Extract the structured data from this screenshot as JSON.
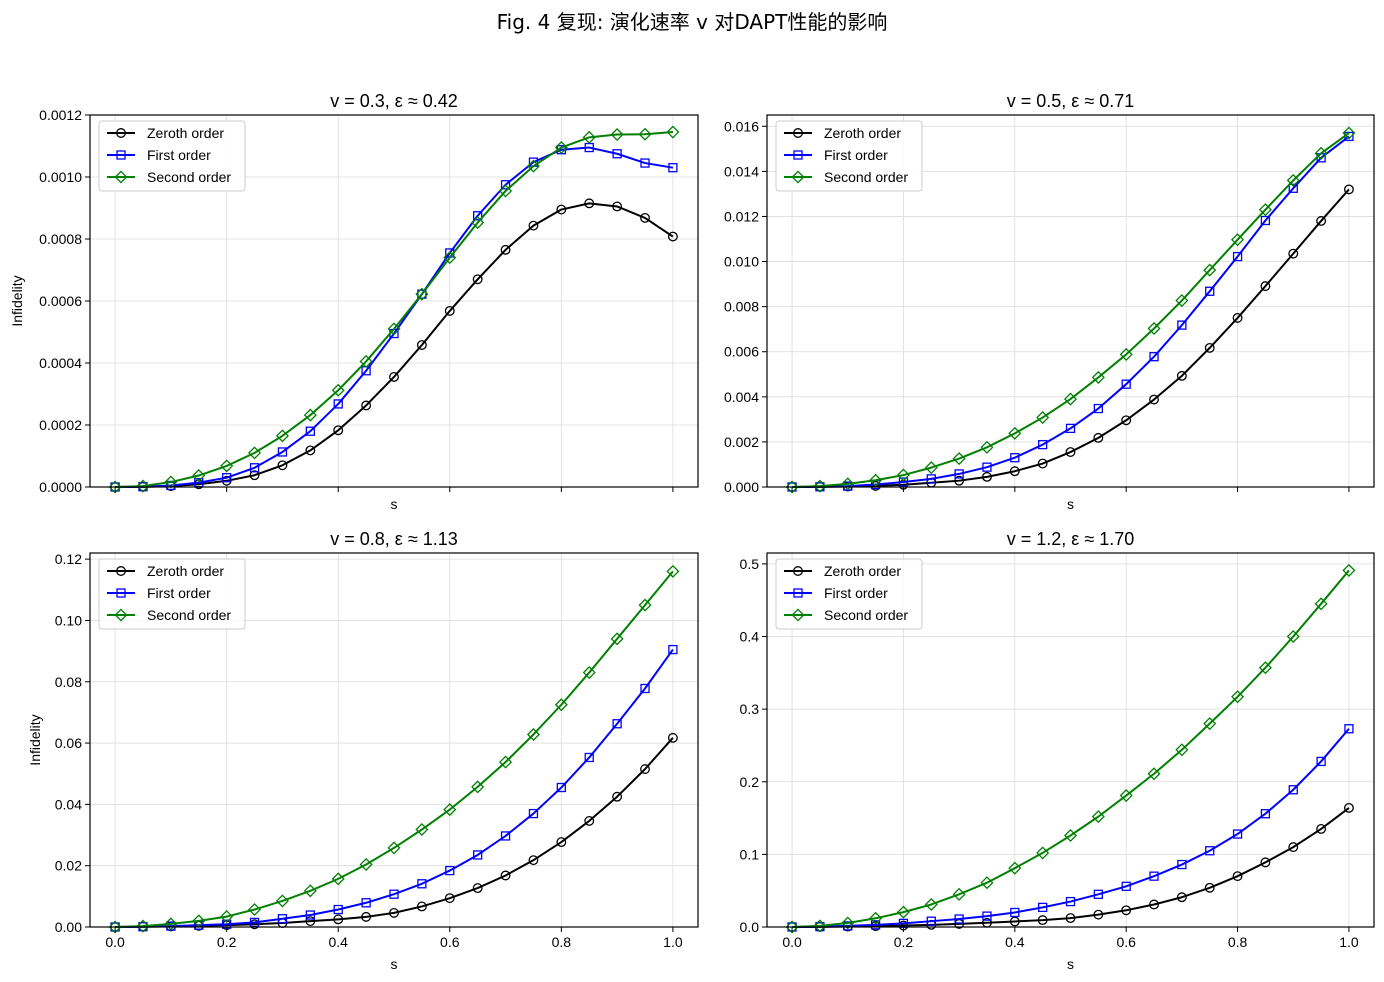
{
  "figure": {
    "title": "Fig. 4 复现: 演化速率 v 对DAPT性能的影响"
  },
  "styles": {
    "Zeroth order": {
      "color": "#000000",
      "marker": "circle"
    },
    "First order": {
      "color": "#0000ff",
      "marker": "square"
    },
    "Second order": {
      "color": "#008000",
      "marker": "diamond"
    }
  },
  "chart_data": [
    {
      "type": "line",
      "title": "v = 0.3,  ε ≈ 0.42",
      "xlabel": "s",
      "ylabel": "Infidelity",
      "xlim": [
        -0.045,
        1.045
      ],
      "ylim": [
        0,
        0.0012
      ],
      "xticks": [
        0.0,
        0.2,
        0.4,
        0.6,
        0.8,
        1.0
      ],
      "xtick_labels": [],
      "yticks": [
        0,
        0.0002,
        0.0004,
        0.0006,
        0.0008,
        0.001,
        0.0012
      ],
      "ytick_labels": [
        "0.0000",
        "0.0002",
        "0.0004",
        "0.0006",
        "0.0008",
        "0.0010",
        "0.0012"
      ],
      "grid": true,
      "legend": "upper-left",
      "x": [
        0,
        0.05,
        0.1,
        0.15,
        0.2,
        0.25,
        0.3,
        0.35,
        0.4,
        0.45,
        0.5,
        0.55,
        0.6,
        0.65,
        0.7,
        0.75,
        0.8,
        0.85,
        0.9,
        0.95,
        1.0
      ],
      "series": [
        {
          "name": "Zeroth order",
          "values": [
            0,
            5e-07,
            3e-06,
            9e-06,
            2e-05,
            3.8e-05,
            7e-05,
            0.000118,
            0.000183,
            0.000263,
            0.000355,
            0.000458,
            0.000568,
            0.00067,
            0.000765,
            0.000843,
            0.000895,
            0.000915,
            0.000905,
            0.000868,
            0.000808
          ]
        },
        {
          "name": "First order",
          "values": [
            0,
            1e-06,
            5e-06,
            1.4e-05,
            3e-05,
            6.2e-05,
            0.000113,
            0.00018,
            0.000268,
            0.000375,
            0.000495,
            0.000622,
            0.000755,
            0.000875,
            0.000975,
            0.001048,
            0.001088,
            0.001095,
            0.001075,
            0.001045,
            0.00103
          ]
        },
        {
          "name": "Second order",
          "values": [
            0,
            3e-06,
            1.6e-05,
            3.7e-05,
            6.8e-05,
            0.00011,
            0.000165,
            0.000232,
            0.000312,
            0.000405,
            0.00051,
            0.000622,
            0.00074,
            0.000853,
            0.000955,
            0.001035,
            0.001095,
            0.001128,
            0.001137,
            0.001138,
            0.001145
          ]
        }
      ]
    },
    {
      "type": "line",
      "title": "v = 0.5,  ε ≈ 0.71",
      "xlabel": "s",
      "ylabel": "",
      "xlim": [
        -0.045,
        1.045
      ],
      "ylim": [
        0,
        0.0165
      ],
      "xticks": [
        0.0,
        0.2,
        0.4,
        0.6,
        0.8,
        1.0
      ],
      "xtick_labels": [],
      "yticks": [
        0,
        0.002,
        0.004,
        0.006,
        0.008,
        0.01,
        0.012,
        0.014,
        0.016
      ],
      "ytick_labels": [
        "0.000",
        "0.002",
        "0.004",
        "0.006",
        "0.008",
        "0.010",
        "0.012",
        "0.014",
        "0.016"
      ],
      "grid": true,
      "legend": "upper-left",
      "x": [
        0,
        0.05,
        0.1,
        0.15,
        0.2,
        0.25,
        0.3,
        0.35,
        0.4,
        0.45,
        0.5,
        0.55,
        0.6,
        0.65,
        0.7,
        0.75,
        0.8,
        0.85,
        0.9,
        0.95,
        1.0
      ],
      "series": [
        {
          "name": "Zeroth order",
          "values": [
            0,
            5e-06,
            2e-05,
            5e-05,
            0.0001,
            0.00019,
            0.00028,
            0.00045,
            0.0007,
            0.00104,
            0.00155,
            0.00218,
            0.00296,
            0.00388,
            0.00493,
            0.00617,
            0.0075,
            0.00891,
            0.01035,
            0.0118,
            0.0132
          ]
        },
        {
          "name": "First order",
          "values": [
            0,
            1e-05,
            4e-05,
            0.00011,
            0.00022,
            0.00036,
            0.00058,
            0.00088,
            0.0013,
            0.00188,
            0.0026,
            0.00348,
            0.00456,
            0.00578,
            0.00718,
            0.00868,
            0.01022,
            0.01182,
            0.01325,
            0.0146,
            0.01555
          ]
        },
        {
          "name": "Second order",
          "values": [
            0,
            4e-05,
            0.00014,
            0.0003,
            0.00053,
            0.00086,
            0.00126,
            0.00176,
            0.00238,
            0.00308,
            0.0039,
            0.00486,
            0.00588,
            0.00703,
            0.00827,
            0.00962,
            0.01097,
            0.0123,
            0.0136,
            0.0148,
            0.0157
          ]
        }
      ]
    },
    {
      "type": "line",
      "title": "v = 0.8,  ε ≈ 1.13",
      "xlabel": "s",
      "ylabel": "Infidelity",
      "xlim": [
        -0.045,
        1.045
      ],
      "ylim": [
        0,
        0.122
      ],
      "xticks": [
        0.0,
        0.2,
        0.4,
        0.6,
        0.8,
        1.0
      ],
      "xtick_labels": [
        "0.0",
        "0.2",
        "0.4",
        "0.6",
        "0.8",
        "1.0"
      ],
      "yticks": [
        0,
        0.02,
        0.04,
        0.06,
        0.08,
        0.1,
        0.12
      ],
      "ytick_labels": [
        "0.00",
        "0.02",
        "0.04",
        "0.06",
        "0.08",
        "0.10",
        "0.12"
      ],
      "grid": true,
      "legend": "upper-left",
      "x": [
        0,
        0.05,
        0.1,
        0.15,
        0.2,
        0.25,
        0.3,
        0.35,
        0.4,
        0.45,
        0.5,
        0.55,
        0.6,
        0.65,
        0.7,
        0.75,
        0.8,
        0.85,
        0.9,
        0.95,
        1.0
      ],
      "series": [
        {
          "name": "Zeroth order",
          "values": [
            0,
            0.0001,
            0.0002,
            0.0004,
            0.0006,
            0.0009,
            0.0013,
            0.0019,
            0.0025,
            0.0033,
            0.0046,
            0.0067,
            0.0094,
            0.0127,
            0.0168,
            0.0218,
            0.0277,
            0.0346,
            0.0425,
            0.0515,
            0.0617
          ]
        },
        {
          "name": "First order",
          "values": [
            0,
            0.0001,
            0.0003,
            0.0006,
            0.0009,
            0.0015,
            0.0027,
            0.0039,
            0.0057,
            0.0079,
            0.0107,
            0.0141,
            0.0184,
            0.0235,
            0.0297,
            0.037,
            0.0455,
            0.0553,
            0.0663,
            0.0778,
            0.0905
          ]
        },
        {
          "name": "Second order",
          "values": [
            0,
            0.0003,
            0.001,
            0.002,
            0.0034,
            0.0057,
            0.0085,
            0.0118,
            0.0157,
            0.0204,
            0.0258,
            0.0318,
            0.0383,
            0.0457,
            0.0538,
            0.0628,
            0.0725,
            0.083,
            0.094,
            0.105,
            0.116
          ]
        }
      ]
    },
    {
      "type": "line",
      "title": "v = 1.2,  ε ≈ 1.70",
      "xlabel": "s",
      "ylabel": "",
      "xlim": [
        -0.045,
        1.045
      ],
      "ylim": [
        0,
        0.515
      ],
      "xticks": [
        0.0,
        0.2,
        0.4,
        0.6,
        0.8,
        1.0
      ],
      "xtick_labels": [
        "0.0",
        "0.2",
        "0.4",
        "0.6",
        "0.8",
        "1.0"
      ],
      "yticks": [
        0,
        0.1,
        0.2,
        0.3,
        0.4,
        0.5
      ],
      "ytick_labels": [
        "0.0",
        "0.1",
        "0.2",
        "0.3",
        "0.4",
        "0.5"
      ],
      "grid": true,
      "legend": "upper-left",
      "x": [
        0,
        0.05,
        0.1,
        0.15,
        0.2,
        0.25,
        0.3,
        0.35,
        0.4,
        0.45,
        0.5,
        0.55,
        0.6,
        0.65,
        0.7,
        0.75,
        0.8,
        0.85,
        0.9,
        0.95,
        1.0
      ],
      "series": [
        {
          "name": "Zeroth order",
          "values": [
            0,
            0.0002,
            0.0006,
            0.0012,
            0.002,
            0.003,
            0.0043,
            0.0058,
            0.0076,
            0.0095,
            0.0123,
            0.017,
            0.023,
            0.031,
            0.041,
            0.054,
            0.07,
            0.089,
            0.11,
            0.135,
            0.164
          ]
        },
        {
          "name": "First order",
          "values": [
            0,
            0.0005,
            0.0015,
            0.003,
            0.005,
            0.008,
            0.011,
            0.015,
            0.02,
            0.027,
            0.035,
            0.045,
            0.056,
            0.07,
            0.086,
            0.105,
            0.128,
            0.156,
            0.189,
            0.228,
            0.273
          ]
        },
        {
          "name": "Second order",
          "values": [
            0,
            0.0015,
            0.0055,
            0.012,
            0.0205,
            0.031,
            0.045,
            0.061,
            0.081,
            0.102,
            0.126,
            0.152,
            0.181,
            0.211,
            0.244,
            0.28,
            0.317,
            0.357,
            0.4,
            0.445,
            0.491
          ]
        }
      ]
    }
  ]
}
